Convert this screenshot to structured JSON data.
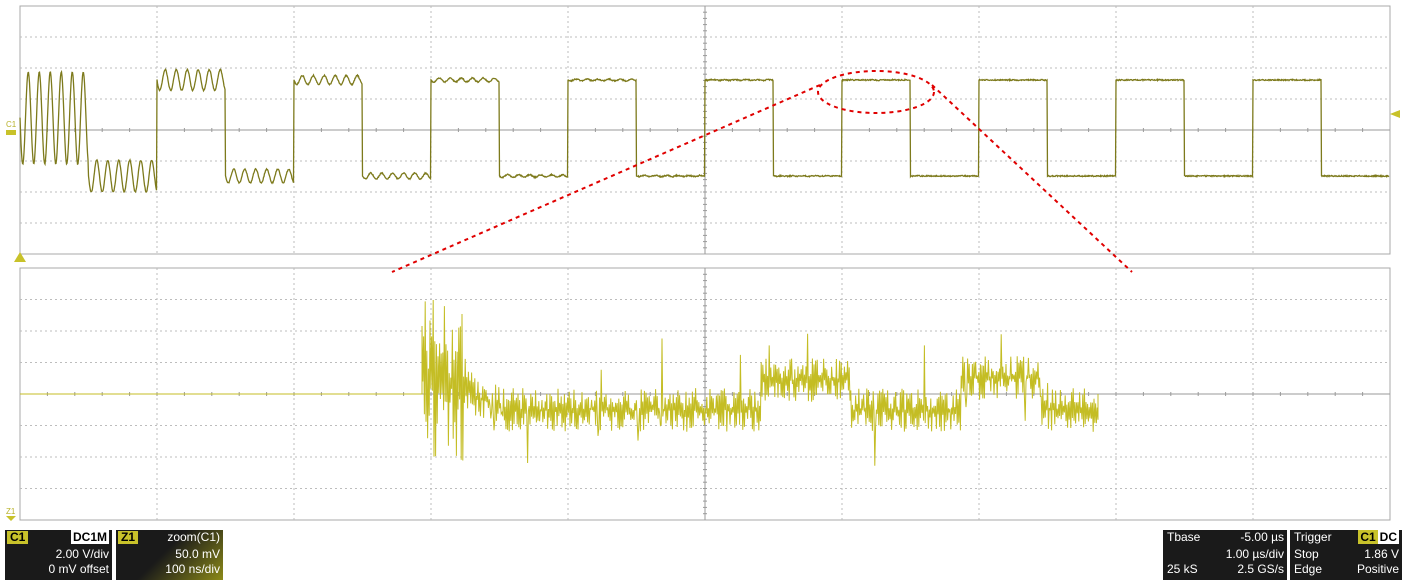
{
  "channel_c1": {
    "tag": "C1",
    "coupling": "DC1M",
    "scale": "2.00 V/div",
    "offset": "0 mV offset",
    "color": "#7d7a1c"
  },
  "zoom_z1": {
    "tag": "Z1",
    "source": "zoom(C1)",
    "scale": "50.0 mV",
    "time_scale": "100 ns/div",
    "color": "#c4bd24"
  },
  "timebase": {
    "label": "Tbase",
    "delay": "-5.00 µs",
    "scale": "1.00 µs/div",
    "samples": "25 kS",
    "rate": "2.5 GS/s"
  },
  "trigger": {
    "label": "Trigger",
    "source_badge": "C1",
    "coupling_badge": "DC",
    "mode": "Stop",
    "level": "1.86 V",
    "type": "Edge",
    "slope": "Positive"
  },
  "graticule": {
    "markers": {
      "c1_label": "C1",
      "z1_label": "Z1"
    }
  },
  "annotation": {
    "zoom_highlight_color": "#e00000"
  }
}
